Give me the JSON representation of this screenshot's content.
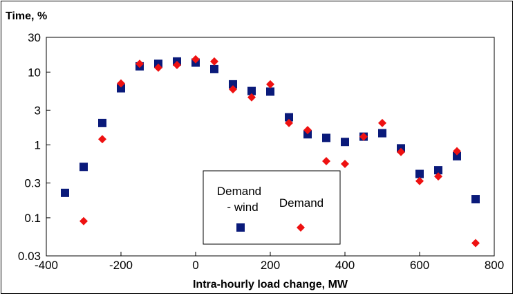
{
  "chart_data": {
    "type": "scatter",
    "title": "Time, %",
    "xlabel": "Intra-hourly load change, MW",
    "ylabel": "Time, %",
    "xlim": [
      -400,
      800
    ],
    "ylim": [
      0.03,
      30
    ],
    "yscale": "log",
    "x_ticks": [
      "-400",
      "-200",
      "0",
      "200",
      "400",
      "600",
      "800"
    ],
    "x_tick_values": [
      -400,
      -200,
      0,
      200,
      400,
      600,
      800
    ],
    "y_ticks": [
      "0.03",
      "0.1",
      "0.3",
      "1",
      "3",
      "10",
      "30"
    ],
    "y_tick_values": [
      0.03,
      0.1,
      0.3,
      1,
      3,
      10,
      30
    ],
    "grid": false,
    "legend_position": "bottom-center",
    "series": [
      {
        "name": "Demand - wind",
        "legend_lines": [
          "Demand",
          "- wind"
        ],
        "marker": "square",
        "color": "#0a1a7a",
        "x": [
          -350,
          -300,
          -250,
          -200,
          -150,
          -100,
          -50,
          0,
          50,
          100,
          150,
          200,
          250,
          300,
          350,
          400,
          450,
          500,
          550,
          600,
          650,
          700,
          750
        ],
        "y": [
          0.22,
          0.5,
          2.0,
          6.0,
          12.0,
          13.0,
          14.0,
          13.5,
          11.0,
          6.8,
          5.5,
          5.4,
          2.4,
          1.4,
          1.25,
          1.1,
          1.3,
          1.45,
          0.9,
          0.4,
          0.45,
          0.7,
          0.18
        ]
      },
      {
        "name": "Demand",
        "legend_lines": [
          "Demand"
        ],
        "marker": "diamond",
        "color": "#ee1111",
        "x": [
          -300,
          -250,
          -200,
          -150,
          -100,
          -50,
          0,
          50,
          100,
          150,
          200,
          250,
          300,
          350,
          400,
          450,
          500,
          550,
          600,
          650,
          700,
          750
        ],
        "y": [
          0.09,
          1.2,
          7.0,
          13.0,
          11.5,
          12.5,
          15.0,
          14.0,
          5.8,
          4.5,
          6.8,
          2.0,
          1.6,
          0.6,
          0.55,
          1.3,
          2.0,
          0.8,
          0.32,
          0.37,
          0.82,
          0.045
        ]
      }
    ]
  }
}
